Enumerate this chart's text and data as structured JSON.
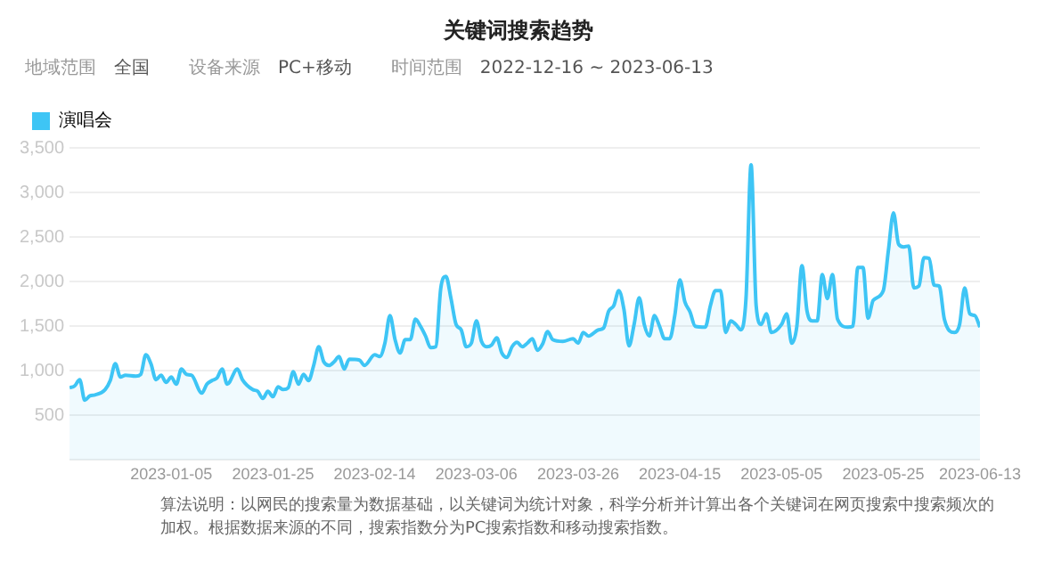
{
  "chart_data": {
    "type": "area",
    "title": "关键词搜索趋势",
    "annotations": [
      "地域范围",
      "全国",
      "设备来源",
      "PC+移动",
      "时间范围",
      "2022-12-16 ~ 2023-06-13",
      "算法说明：以网民的搜索量为数据基础，以关键词为统计对象，科学分析并计算出各个关键词在网页搜索中搜索频次的加权。根据数据来源的不同，搜索指数分为PC搜索指数和移动搜索指数。"
    ],
    "xlim": [
      "2022-12-16",
      "2023-06-13"
    ],
    "xticks": [
      "2023-01-05",
      "2023-01-25",
      "2023-02-14",
      "2023-03-06",
      "2023-03-26",
      "2023-04-15",
      "2023-05-05",
      "2023-05-25",
      "2023-06-13"
    ],
    "ylim": [
      0,
      3500
    ],
    "yticks": [
      {
        "value": 0,
        "label": null
      },
      500,
      {
        "value": 1000,
        "label": "1,000"
      },
      {
        "value": 1500,
        "label": "1,500"
      },
      {
        "value": 2000,
        "label": "2,000"
      },
      {
        "value": 2500,
        "label": "2,500"
      },
      {
        "value": 3000,
        "label": "3,000"
      },
      {
        "value": 3500,
        "label": "3,500"
      }
    ],
    "grid": "y",
    "legend": "top left",
    "marker": "none",
    "series": [
      {
        "name": "演唱会",
        "color": "#3ec5f5",
        "x": [
          "2022-12-16",
          "2022-12-17",
          "2022-12-18",
          "2022-12-19",
          "2022-12-20",
          "2022-12-21",
          "2022-12-23",
          "2022-12-24",
          "2022-12-25",
          "2022-12-26",
          "2022-12-27",
          "2022-12-29",
          "2022-12-30",
          "2022-12-31",
          "2023-01-01",
          "2023-01-02",
          "2023-01-03",
          "2023-01-04",
          "2023-01-05",
          "2023-01-06",
          "2023-01-07",
          "2023-01-08",
          "2023-01-09",
          "2023-01-11",
          "2023-01-12",
          "2023-01-13",
          "2023-01-14",
          "2023-01-15",
          "2023-01-16",
          "2023-01-18",
          "2023-01-19",
          "2023-01-21",
          "2023-01-22",
          "2023-01-23",
          "2023-01-24",
          "2023-01-25",
          "2023-01-26",
          "2023-01-27",
          "2023-01-28",
          "2023-01-29",
          "2023-01-30",
          "2023-01-31",
          "2023-02-01",
          "2023-02-02",
          "2023-02-03",
          "2023-02-04",
          "2023-02-05",
          "2023-02-06",
          "2023-02-07",
          "2023-02-08",
          "2023-02-09",
          "2023-02-11",
          "2023-02-12",
          "2023-02-14",
          "2023-02-15",
          "2023-02-16",
          "2023-02-17",
          "2023-02-18",
          "2023-02-19",
          "2023-02-20",
          "2023-02-21",
          "2023-02-22",
          "2023-02-23",
          "2023-02-24",
          "2023-02-25",
          "2023-02-26",
          "2023-02-27",
          "2023-02-28",
          "2023-03-01",
          "2023-03-02",
          "2023-03-03",
          "2023-03-04",
          "2023-03-05",
          "2023-03-06",
          "2023-03-07",
          "2023-03-08",
          "2023-03-09",
          "2023-03-10",
          "2023-03-11",
          "2023-03-12",
          "2023-03-13",
          "2023-03-14",
          "2023-03-15",
          "2023-03-16",
          "2023-03-17",
          "2023-03-18",
          "2023-03-19",
          "2023-03-20",
          "2023-03-21",
          "2023-03-23",
          "2023-03-25",
          "2023-03-26",
          "2023-03-27",
          "2023-03-28",
          "2023-03-30",
          "2023-03-31",
          "2023-04-01",
          "2023-04-02",
          "2023-04-03",
          "2023-04-04",
          "2023-04-05",
          "2023-04-06",
          "2023-04-07",
          "2023-04-08",
          "2023-04-09",
          "2023-04-10",
          "2023-04-11",
          "2023-04-12",
          "2023-04-13",
          "2023-04-14",
          "2023-04-15",
          "2023-04-16",
          "2023-04-17",
          "2023-04-18",
          "2023-04-20",
          "2023-04-21",
          "2023-04-22",
          "2023-04-23",
          "2023-04-24",
          "2023-04-25",
          "2023-04-26",
          "2023-04-27",
          "2023-04-28",
          "2023-04-29",
          "2023-04-30",
          "2023-05-01",
          "2023-05-02",
          "2023-05-03",
          "2023-05-05",
          "2023-05-06",
          "2023-05-07",
          "2023-05-08",
          "2023-05-09",
          "2023-05-10",
          "2023-05-11",
          "2023-05-12",
          "2023-05-13",
          "2023-05-14",
          "2023-05-15",
          "2023-05-16",
          "2023-05-18",
          "2023-05-19",
          "2023-05-20",
          "2023-05-21",
          "2023-05-22",
          "2023-05-23",
          "2023-05-25",
          "2023-05-26",
          "2023-05-27",
          "2023-05-28",
          "2023-05-29",
          "2023-05-30",
          "2023-05-31",
          "2023-06-01",
          "2023-06-02",
          "2023-06-03",
          "2023-06-04",
          "2023-06-05",
          "2023-06-06",
          "2023-06-08",
          "2023-06-09",
          "2023-06-10",
          "2023-06-11",
          "2023-06-12",
          "2023-06-13"
        ],
        "values": [
          810,
          830,
          900,
          670,
          720,
          730,
          790,
          890,
          1080,
          930,
          950,
          940,
          960,
          1180,
          1080,
          900,
          950,
          870,
          930,
          850,
          1020,
          960,
          950,
          750,
          850,
          890,
          920,
          1020,
          850,
          1020,
          900,
          790,
          770,
          690,
          770,
          710,
          820,
          790,
          810,
          990,
          850,
          960,
          890,
          1060,
          1270,
          1100,
          1060,
          1100,
          1160,
          1020,
          1130,
          1120,
          1060,
          1180,
          1160,
          1310,
          1620,
          1350,
          1200,
          1350,
          1350,
          1580,
          1500,
          1390,
          1260,
          1270,
          1930,
          2060,
          1810,
          1520,
          1460,
          1270,
          1310,
          1560,
          1330,
          1270,
          1290,
          1370,
          1200,
          1150,
          1270,
          1320,
          1270,
          1310,
          1360,
          1230,
          1300,
          1440,
          1350,
          1330,
          1360,
          1310,
          1430,
          1390,
          1460,
          1480,
          1670,
          1730,
          1900,
          1690,
          1280,
          1520,
          1820,
          1520,
          1390,
          1620,
          1500,
          1360,
          1360,
          1620,
          2020,
          1770,
          1660,
          1500,
          1490,
          1730,
          1900,
          1900,
          1430,
          1560,
          1520,
          1460,
          1810,
          3310,
          1730,
          1520,
          1640,
          1430,
          1520,
          1640,
          1310,
          1500,
          2180,
          1670,
          1560,
          1560,
          2080,
          1810,
          2080,
          1580,
          1490,
          1500,
          2160,
          2160,
          1590,
          1790,
          1900,
          2350,
          2770,
          2420,
          2390,
          2400,
          1930,
          1950,
          2270,
          2260,
          1960,
          1950,
          1580,
          1430,
          1520,
          1930,
          1640,
          1620,
          1490
        ]
      }
    ]
  }
}
